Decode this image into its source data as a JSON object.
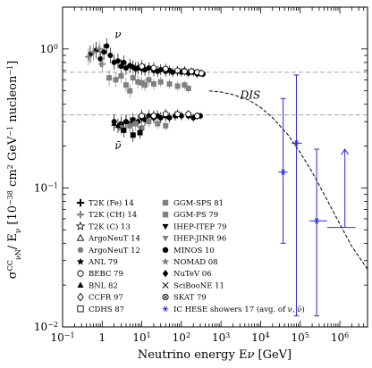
{
  "chart_data": {
    "type": "scatter",
    "xlabel": "Neutrino energy E_ν [GeV]",
    "ylabel": "σ^CC_νN / E_ν [10^-38 cm^2 GeV^-1 nucleon^-1]",
    "xscale": "log",
    "yscale": "log",
    "xlim": [
      0.1,
      5000000
    ],
    "ylim": [
      0.01,
      2
    ],
    "x_ticks": [
      {
        "v": 0.1,
        "label": "10^-1"
      },
      {
        "v": 1,
        "label": "1"
      },
      {
        "v": 10,
        "label": "10^1"
      },
      {
        "v": 100,
        "label": "10^2"
      },
      {
        "v": 1000,
        "label": "10^3"
      },
      {
        "v": 10000,
        "label": "10^4"
      },
      {
        "v": 100000,
        "label": "10^5"
      },
      {
        "v": 1000000,
        "label": "10^6"
      }
    ],
    "y_ticks": [
      {
        "v": 0.01,
        "label": "10^-2"
      },
      {
        "v": 0.1,
        "label": "10^-1"
      },
      {
        "v": 1,
        "label": "10^0"
      }
    ],
    "annotations": [
      {
        "text": "ν",
        "x": 2.5,
        "y": 1.2,
        "color": "#000000"
      },
      {
        "text": "ν̄",
        "x": 2.5,
        "y": 0.19,
        "color": "#000000"
      },
      {
        "text": "DIS",
        "x": 5500,
        "y": 0.44,
        "color": "#000000"
      }
    ],
    "reference_lines": [
      {
        "name": "nu_dis_level",
        "y": 0.68,
        "style": "dashed",
        "color": "#999999"
      },
      {
        "name": "nubar_dis_level",
        "y": 0.335,
        "style": "dashed",
        "color": "#999999"
      }
    ],
    "dis_curve": {
      "style": "dashed",
      "color": "#000000",
      "x": [
        500,
        1000,
        2000,
        5000,
        10000,
        20000,
        50000,
        100000,
        200000,
        500000,
        1000000,
        2000000,
        5000000
      ],
      "y": [
        0.5,
        0.49,
        0.47,
        0.43,
        0.38,
        0.32,
        0.24,
        0.18,
        0.13,
        0.08,
        0.055,
        0.038,
        0.026
      ]
    },
    "legend_left": [
      {
        "label": "T2K (Fe) 14",
        "marker": "plus-bold",
        "color": "#000000"
      },
      {
        "label": "T2K (CH) 14",
        "marker": "plus-bold",
        "color": "#808080"
      },
      {
        "label": "T2K (C) 13",
        "marker": "star-open",
        "color": "#000000"
      },
      {
        "label": "ArgoNeuT 14",
        "marker": "triangle-open",
        "color": "#000000"
      },
      {
        "label": "ArgoNeuT 12",
        "marker": "circle-filled",
        "color": "#808080"
      },
      {
        "label": "ANL 79",
        "marker": "star-filled",
        "color": "#000000"
      },
      {
        "label": "BEBC 79",
        "marker": "circle-open",
        "color": "#000000"
      },
      {
        "label": "BNL 82",
        "marker": "triangle-filled",
        "color": "#000000"
      },
      {
        "label": "CCFR 97",
        "marker": "diamond-open",
        "color": "#000000"
      },
      {
        "label": "CDHS 87",
        "marker": "square-open",
        "color": "#000000"
      }
    ],
    "legend_right": [
      {
        "label": "GGM-SPS 81",
        "marker": "square-filled",
        "color": "#808080"
      },
      {
        "label": "GGM-PS 79",
        "marker": "square-filled",
        "color": "#808080"
      },
      {
        "label": "IHEP-ITEP 79",
        "marker": "triangle-down-filled",
        "color": "#000000"
      },
      {
        "label": "IHEP-JINR 96",
        "marker": "triangle-down-filled",
        "color": "#808080"
      },
      {
        "label": "MINOS 10",
        "marker": "circle-filled",
        "color": "#000000"
      },
      {
        "label": "NOMAD 08",
        "marker": "star-filled",
        "color": "#808080"
      },
      {
        "label": "NuTeV 06",
        "marker": "diamond-filled",
        "color": "#000000"
      },
      {
        "label": "SciBooNE 11",
        "marker": "cross",
        "color": "#000000"
      },
      {
        "label": "SKAT 79",
        "marker": "circle-cross",
        "color": "#000000"
      },
      {
        "label": "IC HESE showers 17 (avg. of ν, ν̄)",
        "marker": "asterisk",
        "color": "#2a2ad8"
      }
    ],
    "series": [
      {
        "name": "neutrino accelerator data",
        "marker": "circle-filled",
        "color": "#000000",
        "points": [
          [
            0.5,
            0.92
          ],
          [
            0.7,
            0.98
          ],
          [
            0.9,
            0.85
          ],
          [
            1.1,
            0.95
          ],
          [
            1.3,
            1.05
          ],
          [
            1.6,
            0.9
          ],
          [
            2,
            0.8
          ],
          [
            2.5,
            0.82
          ],
          [
            3,
            0.75
          ],
          [
            3.5,
            0.8
          ],
          [
            4,
            0.73
          ],
          [
            5,
            0.76
          ],
          [
            6,
            0.74
          ],
          [
            7,
            0.72
          ],
          [
            8,
            0.73
          ],
          [
            10,
            0.72
          ],
          [
            12,
            0.71
          ],
          [
            15,
            0.73
          ],
          [
            20,
            0.7
          ],
          [
            25,
            0.69
          ],
          [
            30,
            0.71
          ],
          [
            40,
            0.69
          ],
          [
            50,
            0.7
          ],
          [
            60,
            0.68
          ],
          [
            80,
            0.69
          ],
          [
            100,
            0.68
          ],
          [
            120,
            0.7
          ],
          [
            150,
            0.67
          ],
          [
            200,
            0.68
          ],
          [
            250,
            0.66
          ],
          [
            300,
            0.67
          ],
          [
            350,
            0.66
          ]
        ]
      },
      {
        "name": "neutrino open-marker data",
        "marker": "circle-open",
        "color": "#000000",
        "points": [
          [
            10,
            0.75
          ],
          [
            20,
            0.73
          ],
          [
            40,
            0.72
          ],
          [
            80,
            0.7
          ],
          [
            120,
            0.69
          ],
          [
            180,
            0.69
          ],
          [
            250,
            0.68
          ],
          [
            320,
            0.67
          ]
        ]
      },
      {
        "name": "neutrino grey data",
        "marker": "square-filled",
        "color": "#808080",
        "points": [
          [
            1.5,
            0.62
          ],
          [
            2.2,
            0.6
          ],
          [
            3,
            0.64
          ],
          [
            4,
            0.55
          ],
          [
            5,
            0.5
          ],
          [
            6,
            0.62
          ],
          [
            8,
            0.58
          ],
          [
            10,
            0.57
          ],
          [
            12,
            0.55
          ],
          [
            15,
            0.6
          ],
          [
            20,
            0.56
          ],
          [
            30,
            0.58
          ],
          [
            50,
            0.56
          ],
          [
            80,
            0.54
          ],
          [
            120,
            0.55
          ],
          [
            150,
            0.52
          ]
        ]
      },
      {
        "name": "neutrino grey low-energy",
        "marker": "plus-bold",
        "color": "#808080",
        "points": [
          [
            0.45,
            0.88
          ],
          [
            0.6,
            0.95
          ],
          [
            0.85,
            1.0
          ],
          [
            1.0,
            0.78
          ]
        ]
      },
      {
        "name": "antineutrino black data",
        "marker": "circle-filled",
        "color": "#000000",
        "points": [
          [
            2,
            0.3
          ],
          [
            3,
            0.29
          ],
          [
            4,
            0.3
          ],
          [
            5,
            0.29
          ],
          [
            6,
            0.31
          ],
          [
            8,
            0.3
          ],
          [
            10,
            0.32
          ],
          [
            12,
            0.31
          ],
          [
            15,
            0.33
          ],
          [
            20,
            0.32
          ],
          [
            25,
            0.33
          ],
          [
            30,
            0.32
          ],
          [
            40,
            0.33
          ],
          [
            50,
            0.32
          ],
          [
            70,
            0.33
          ],
          [
            100,
            0.33
          ],
          [
            150,
            0.33
          ],
          [
            200,
            0.32
          ],
          [
            300,
            0.33
          ]
        ]
      },
      {
        "name": "antineutrino grey data",
        "marker": "square-filled",
        "color": "#808080",
        "points": [
          [
            3,
            0.27
          ],
          [
            5,
            0.28
          ],
          [
            7,
            0.29
          ],
          [
            10,
            0.27
          ],
          [
            15,
            0.3
          ],
          [
            25,
            0.29
          ],
          [
            40,
            0.28
          ]
        ]
      },
      {
        "name": "antineutrino squares black",
        "marker": "square-filled",
        "color": "#000000",
        "points": [
          [
            3.5,
            0.26
          ],
          [
            6,
            0.24
          ],
          [
            9,
            0.25
          ]
        ]
      },
      {
        "name": "antineutrino triangles",
        "marker": "triangle-filled",
        "color": "#000000",
        "points": [
          [
            2,
            0.29
          ],
          [
            2.5,
            0.28
          ],
          [
            4,
            0.3
          ]
        ]
      },
      {
        "name": "antineutrino open",
        "marker": "circle-open",
        "color": "#000000",
        "points": [
          [
            10,
            0.33
          ],
          [
            20,
            0.33
          ],
          [
            40,
            0.34
          ],
          [
            80,
            0.34
          ],
          [
            150,
            0.34
          ],
          [
            250,
            0.33
          ]
        ]
      }
    ],
    "icecube": {
      "name": "IC HESE showers 17 (avg. of ν, ν̄)",
      "color": "#2a2ad8",
      "points": [
        {
          "x": 37000,
          "y": 0.13,
          "xlo": 28000,
          "xhi": 48000,
          "ylo": 0.04,
          "yhi": 0.44
        },
        {
          "x": 80000,
          "y": 0.21,
          "xlo": 60000,
          "xhi": 110000,
          "ylo": 0.012,
          "yhi": 0.65
        },
        {
          "x": 260000,
          "y": 0.058,
          "xlo": 170000,
          "xhi": 480000,
          "ylo": 0.012,
          "yhi": 0.19
        },
        {
          "x": 600000,
          "y": 0.052,
          "xlo": 480000,
          "xhi": 2500000,
          "ylo": 0.052,
          "yhi": 0.19,
          "upper_limit": true
        }
      ]
    }
  }
}
